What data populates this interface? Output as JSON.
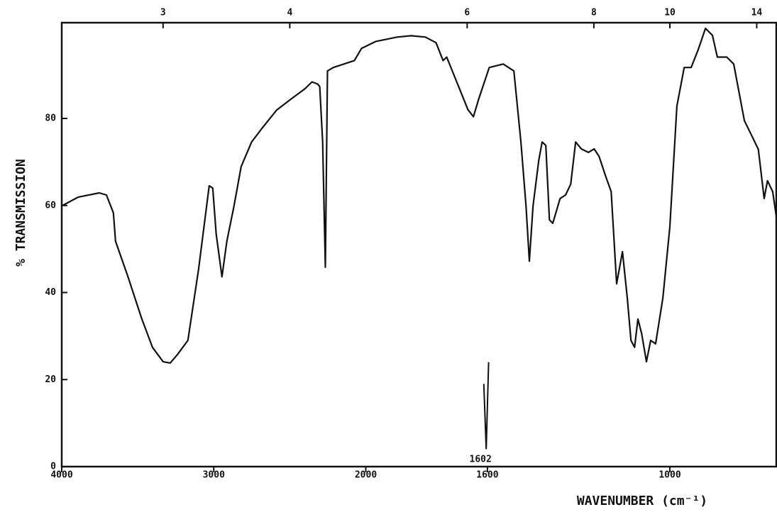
{
  "chart_data": {
    "type": "line",
    "x_label": "WAVENUMBER (cm⁻¹)",
    "y_label": "% TRANSMISSION",
    "color": "#111111",
    "xlim": [
      4000,
      650
    ],
    "x_scale_break": 2000,
    "x_scale_ratio": 2,
    "xticks": [
      4000,
      3000,
      2000,
      1600,
      1000
    ],
    "x2ticks": [
      3,
      4,
      6,
      8,
      10,
      14
    ],
    "ylim": [
      0,
      102
    ],
    "yticks": [
      0,
      20,
      40,
      60,
      80
    ],
    "x": [
      4000,
      3893,
      3753,
      3706,
      3660,
      3646,
      3566,
      3473,
      3403,
      3333,
      3287,
      3240,
      3170,
      3100,
      3030,
      3007,
      2984,
      2946,
      2914,
      2867,
      2820,
      2751,
      2681,
      2587,
      2494,
      2401,
      2354,
      2317,
      2303,
      2284,
      2266,
      2252,
      2214,
      2075,
      2028,
      1967,
      1897,
      1851,
      1804,
      1769,
      1746,
      1734,
      1711,
      1664,
      1646,
      1629,
      1594,
      1548,
      1513,
      1490,
      1473,
      1462,
      1450,
      1431,
      1420,
      1408,
      1396,
      1385,
      1361,
      1343,
      1326,
      1310,
      1291,
      1268,
      1249,
      1233,
      1210,
      1193,
      1175,
      1156,
      1140,
      1128,
      1116,
      1105,
      1093,
      1077,
      1063,
      1047,
      1023,
      1000,
      977,
      953,
      930,
      907,
      883,
      860,
      844,
      813,
      790,
      755,
      732,
      709,
      690,
      679,
      662,
      650
    ],
    "values": [
      59.9,
      61.9,
      62.9,
      62.4,
      58.3,
      51.8,
      43.8,
      33.9,
      27.4,
      24.1,
      23.8,
      25.7,
      29.0,
      45.3,
      64.5,
      64.0,
      53.4,
      43.6,
      51.8,
      59.9,
      68.9,
      74.6,
      77.8,
      81.9,
      84.4,
      86.8,
      88.4,
      87.9,
      87.3,
      74.6,
      45.8,
      90.9,
      91.7,
      93.3,
      96.1,
      97.7,
      98.7,
      99.0,
      98.7,
      97.4,
      93.3,
      94.1,
      90.1,
      82.0,
      80.4,
      84.4,
      91.7,
      92.5,
      90.9,
      74.6,
      59.9,
      47.2,
      59.9,
      70.4,
      74.6,
      73.8,
      56.7,
      55.9,
      61.6,
      62.4,
      64.9,
      74.6,
      73.0,
      72.2,
      73.0,
      71.3,
      66.5,
      63.2,
      42.0,
      49.4,
      38.8,
      29.0,
      27.4,
      33.9,
      30.6,
      24.1,
      29.0,
      28.2,
      38.8,
      55.1,
      82.8,
      91.7,
      91.7,
      95.8,
      100.7,
      99.1,
      94.1,
      94.1,
      92.5,
      79.5,
      76.2,
      72.9,
      61.6,
      65.7,
      63.2,
      57.5
    ],
    "annotation": {
      "text": "1602",
      "x": [
        1612,
        1604,
        1596
      ],
      "y": [
        19,
        4,
        24
      ]
    }
  }
}
